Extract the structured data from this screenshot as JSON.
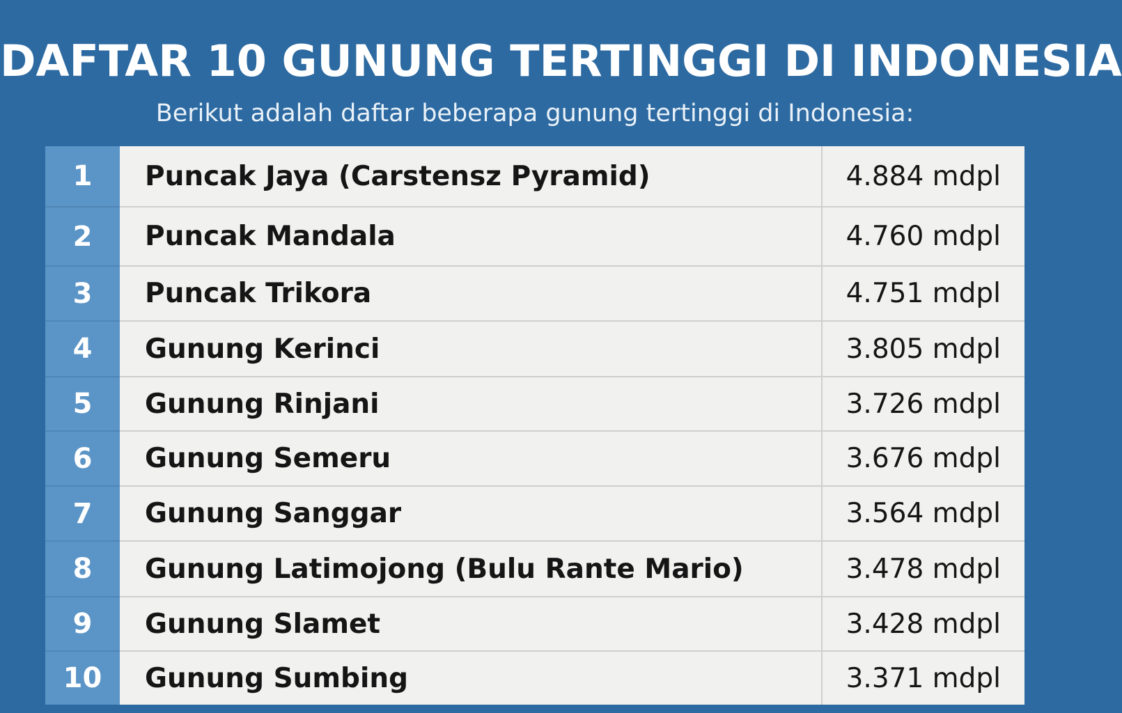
{
  "title": "DAFTAR 10 GUNUNG TERTINGGI DI INDONESIA",
  "subtitle": "Berikut adalah daftar beberapa gunung tertinggi di Indonesia:",
  "colors": {
    "background": "#2d6aa1",
    "rank_cell": "#5b94c6",
    "row_cell": "#f1f1f0",
    "text_dark": "#151515",
    "text_light": "#ffffff"
  },
  "mountains": [
    {
      "rank": "1",
      "name": "Puncak Jaya (Carstensz Pyramid)",
      "height": "4.884 mdpl"
    },
    {
      "rank": "2",
      "name": "Puncak Mandala",
      "height": "4.760 mdpl"
    },
    {
      "rank": "3",
      "name": "Puncak Trikora",
      "height": "4.751 mdpl"
    },
    {
      "rank": "4",
      "name": "Gunung Kerinci",
      "height": "3.805 mdpl"
    },
    {
      "rank": "5",
      "name": "Gunung Rinjani",
      "height": "3.726 mdpl"
    },
    {
      "rank": "6",
      "name": "Gunung Semeru",
      "height": "3.676 mdpl"
    },
    {
      "rank": "7",
      "name": "Gunung Sanggar",
      "height": "3.564 mdpl"
    },
    {
      "rank": "8",
      "name": "Gunung Latimojong (Bulu Rante Mario)",
      "height": "3.478 mdpl"
    },
    {
      "rank": "9",
      "name": "Gunung Slamet",
      "height": "3.428 mdpl"
    },
    {
      "rank": "10",
      "name": "Gunung Sumbing",
      "height": "3.371 mdpl"
    }
  ]
}
